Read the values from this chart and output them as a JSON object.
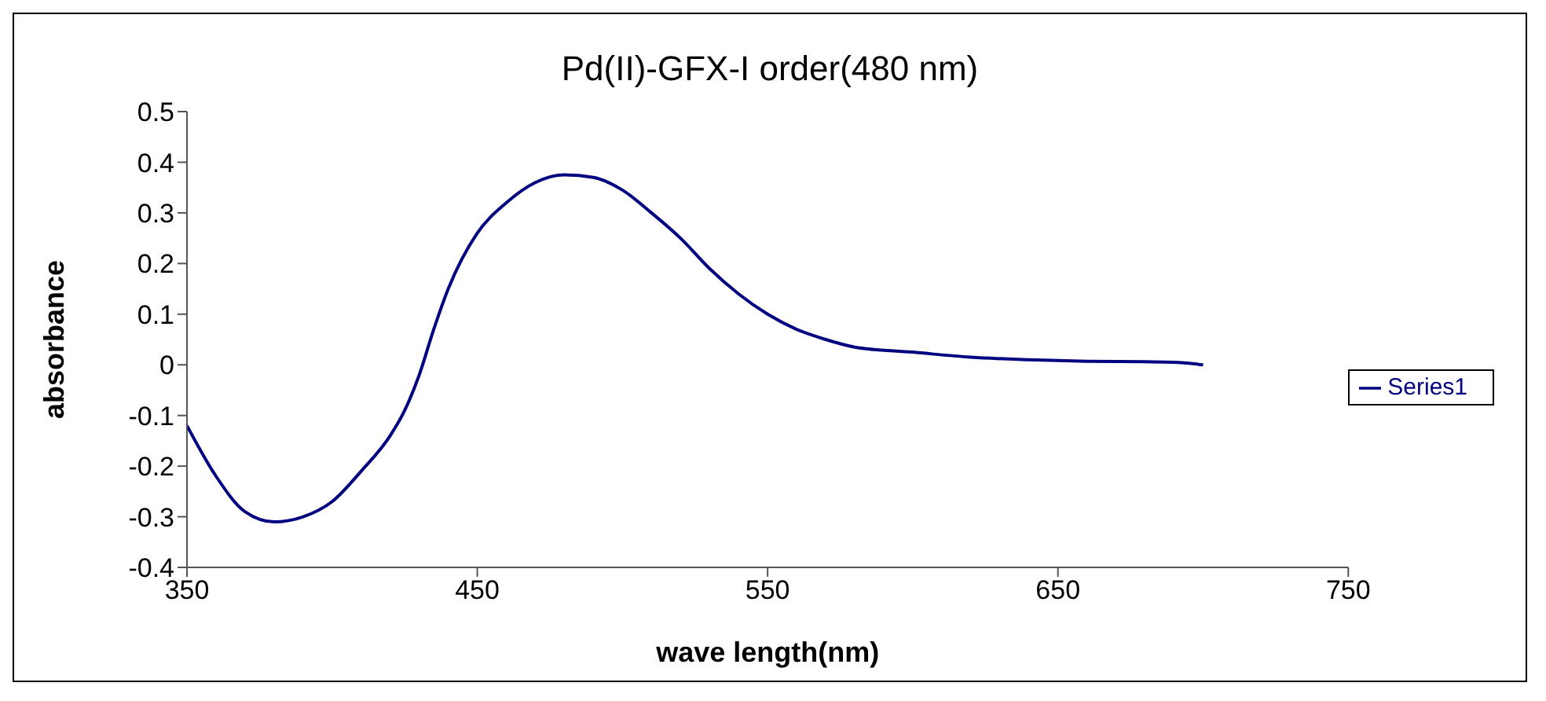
{
  "chart_data": {
    "type": "line",
    "title": "Pd(II)-GFX-I order(480 nm)",
    "xlabel": "wave length(nm)",
    "ylabel": "absorbance",
    "xlim": [
      350,
      750
    ],
    "xticks": [
      350,
      450,
      550,
      650,
      750
    ],
    "ylim": [
      -0.4,
      0.5
    ],
    "yticks": [
      -0.4,
      -0.3,
      -0.2,
      -0.1,
      0,
      0.1,
      0.2,
      0.3,
      0.4,
      0.5
    ],
    "legend": "right",
    "grid": false,
    "marker": "none",
    "x": [
      350,
      360,
      370,
      380,
      390,
      400,
      410,
      420,
      425,
      430,
      435,
      440,
      450,
      460,
      470,
      480,
      490,
      500,
      510,
      520,
      530,
      540,
      550,
      560,
      570,
      580,
      600,
      620,
      640,
      660,
      680,
      690,
      700
    ],
    "series": [
      {
        "name": "Series1",
        "color": "#000080",
        "values": [
          -0.12,
          -0.22,
          -0.29,
          -0.31,
          -0.3,
          -0.27,
          -0.21,
          -0.14,
          -0.09,
          -0.02,
          0.07,
          0.15,
          0.26,
          0.32,
          0.36,
          0.375,
          0.37,
          0.345,
          0.3,
          0.25,
          0.19,
          0.14,
          0.1,
          0.07,
          0.05,
          0.035,
          0.025,
          0.015,
          0.01,
          0.007,
          0.006,
          0.005,
          0
        ]
      }
    ]
  }
}
